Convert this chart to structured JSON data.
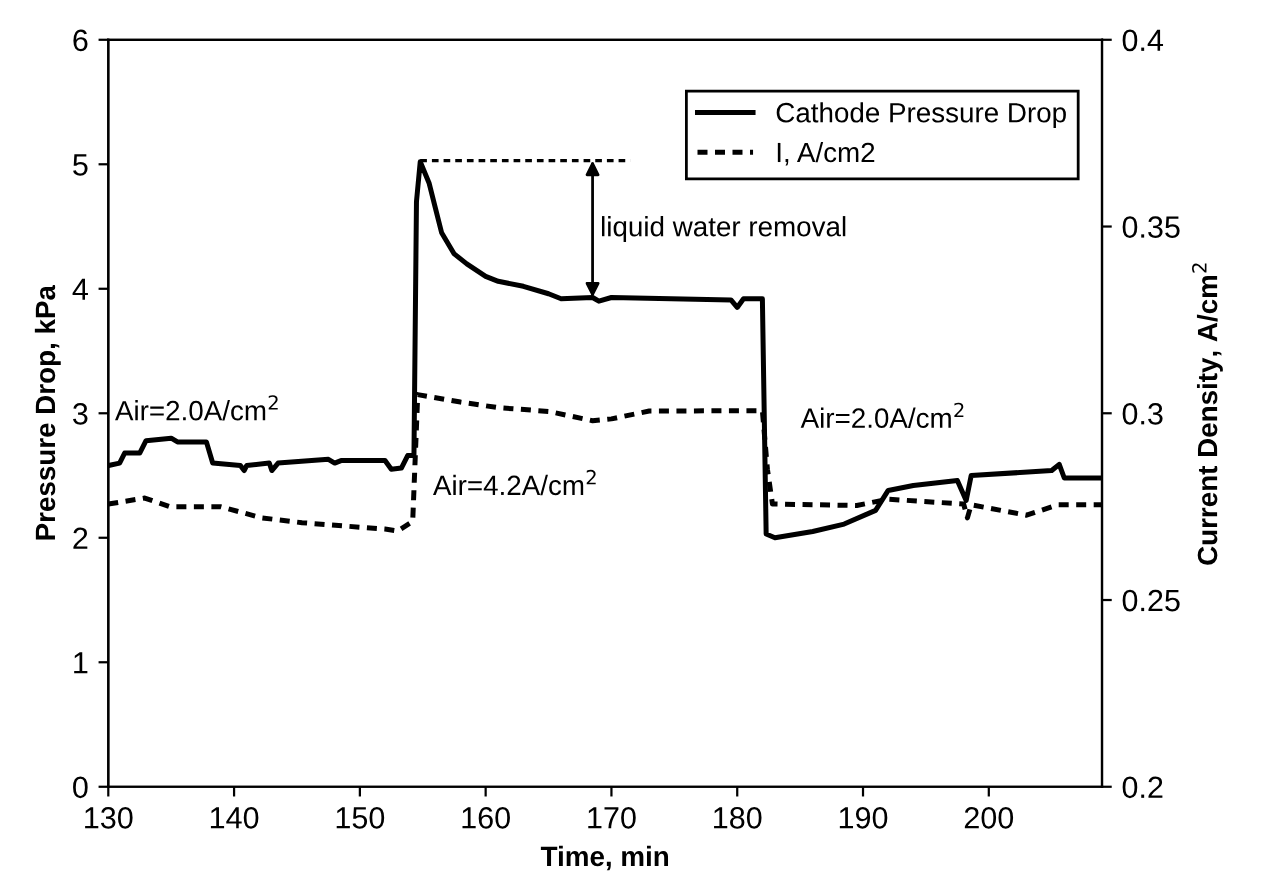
{
  "chart_data": {
    "type": "line",
    "xlabel": "Time, min",
    "ylabel": "Pressure Drop, kPa",
    "y2label": "Current Density, A/cm$^{2}$",
    "xlim": [
      130,
      209
    ],
    "xticks": [
      130,
      140,
      150,
      160,
      170,
      180,
      190,
      200
    ],
    "ylim": [
      0,
      6
    ],
    "yticks": [
      0,
      1,
      2,
      3,
      4,
      5,
      6
    ],
    "y2lim": [
      0.2,
      0.4
    ],
    "y2ticks": [
      0.2,
      0.25,
      0.3,
      0.35,
      0.4
    ],
    "grid": false,
    "legend": "top right",
    "marker": "none",
    "series": [
      {
        "name": "Cathode Pressure Drop",
        "color": "#000000",
        "line_style": "solid",
        "x": [
          130,
          130.9,
          131.3,
          132.5,
          133,
          135,
          135.5,
          137.8,
          138.3,
          140.5,
          140.8,
          141,
          142.8,
          143,
          143.5,
          147.5,
          148,
          148.5,
          152,
          152.5,
          153.3,
          153.8,
          154.3,
          154.5,
          154.8,
          155.5,
          156,
          156.5,
          157.5,
          158.5,
          160,
          161,
          163,
          165,
          166,
          168.5,
          169,
          170,
          179.5,
          180,
          180.5,
          182,
          182.3,
          183,
          186,
          188.5,
          191,
          192,
          194,
          197.5,
          198.2,
          198.6,
          205,
          205.6,
          206,
          209
        ],
        "values": [
          2.58,
          2.6,
          2.68,
          2.68,
          2.78,
          2.8,
          2.77,
          2.77,
          2.6,
          2.58,
          2.54,
          2.58,
          2.6,
          2.54,
          2.6,
          2.63,
          2.6,
          2.62,
          2.62,
          2.55,
          2.56,
          2.66,
          2.66,
          4.7,
          5.02,
          4.85,
          4.65,
          4.45,
          4.28,
          4.2,
          4.1,
          4.06,
          4.02,
          3.96,
          3.92,
          3.93,
          3.9,
          3.93,
          3.91,
          3.85,
          3.92,
          3.92,
          2.03,
          2.0,
          2.05,
          2.11,
          2.22,
          2.38,
          2.42,
          2.46,
          2.3,
          2.5,
          2.54,
          2.59,
          2.48,
          2.48
        ]
      },
      {
        "name": "I, A/cm2",
        "color": "#000000",
        "line_style": "dashed",
        "axis": "y2",
        "x": [
          130,
          132.9,
          134.9,
          138.9,
          142.2,
          145.4,
          150,
          152,
          153,
          154.2,
          154.6,
          158,
          161,
          165,
          168.5,
          170,
          173,
          182,
          182.4,
          182.8,
          189.5,
          192,
          198,
          198.3,
          198.6,
          203,
          205.5,
          209
        ],
        "values": [
          0.2757,
          0.2773,
          0.275,
          0.275,
          0.272,
          0.2707,
          0.2695,
          0.269,
          0.2685,
          0.271,
          0.305,
          0.303,
          0.3015,
          0.3005,
          0.298,
          0.2985,
          0.3006,
          0.3007,
          0.285,
          0.2757,
          0.2753,
          0.277,
          0.2757,
          0.272,
          0.2755,
          0.2727,
          0.2755,
          0.2755
        ]
      },
      {
        "color": "#000000",
        "line_style": "dashed",
        "x": [
          154.8,
          171.5
        ],
        "values": [
          5.03,
          5.03
        ]
      }
    ],
    "annotations": [
      {
        "text": "liquid water removal",
        "x": 168.5,
        "y": 5.03
      },
      "Air=2.0A/cm$^{2}$",
      "Air=4.2A/cm$^{2}$",
      "Air=2.0A/cm$^{2}$"
    ]
  }
}
